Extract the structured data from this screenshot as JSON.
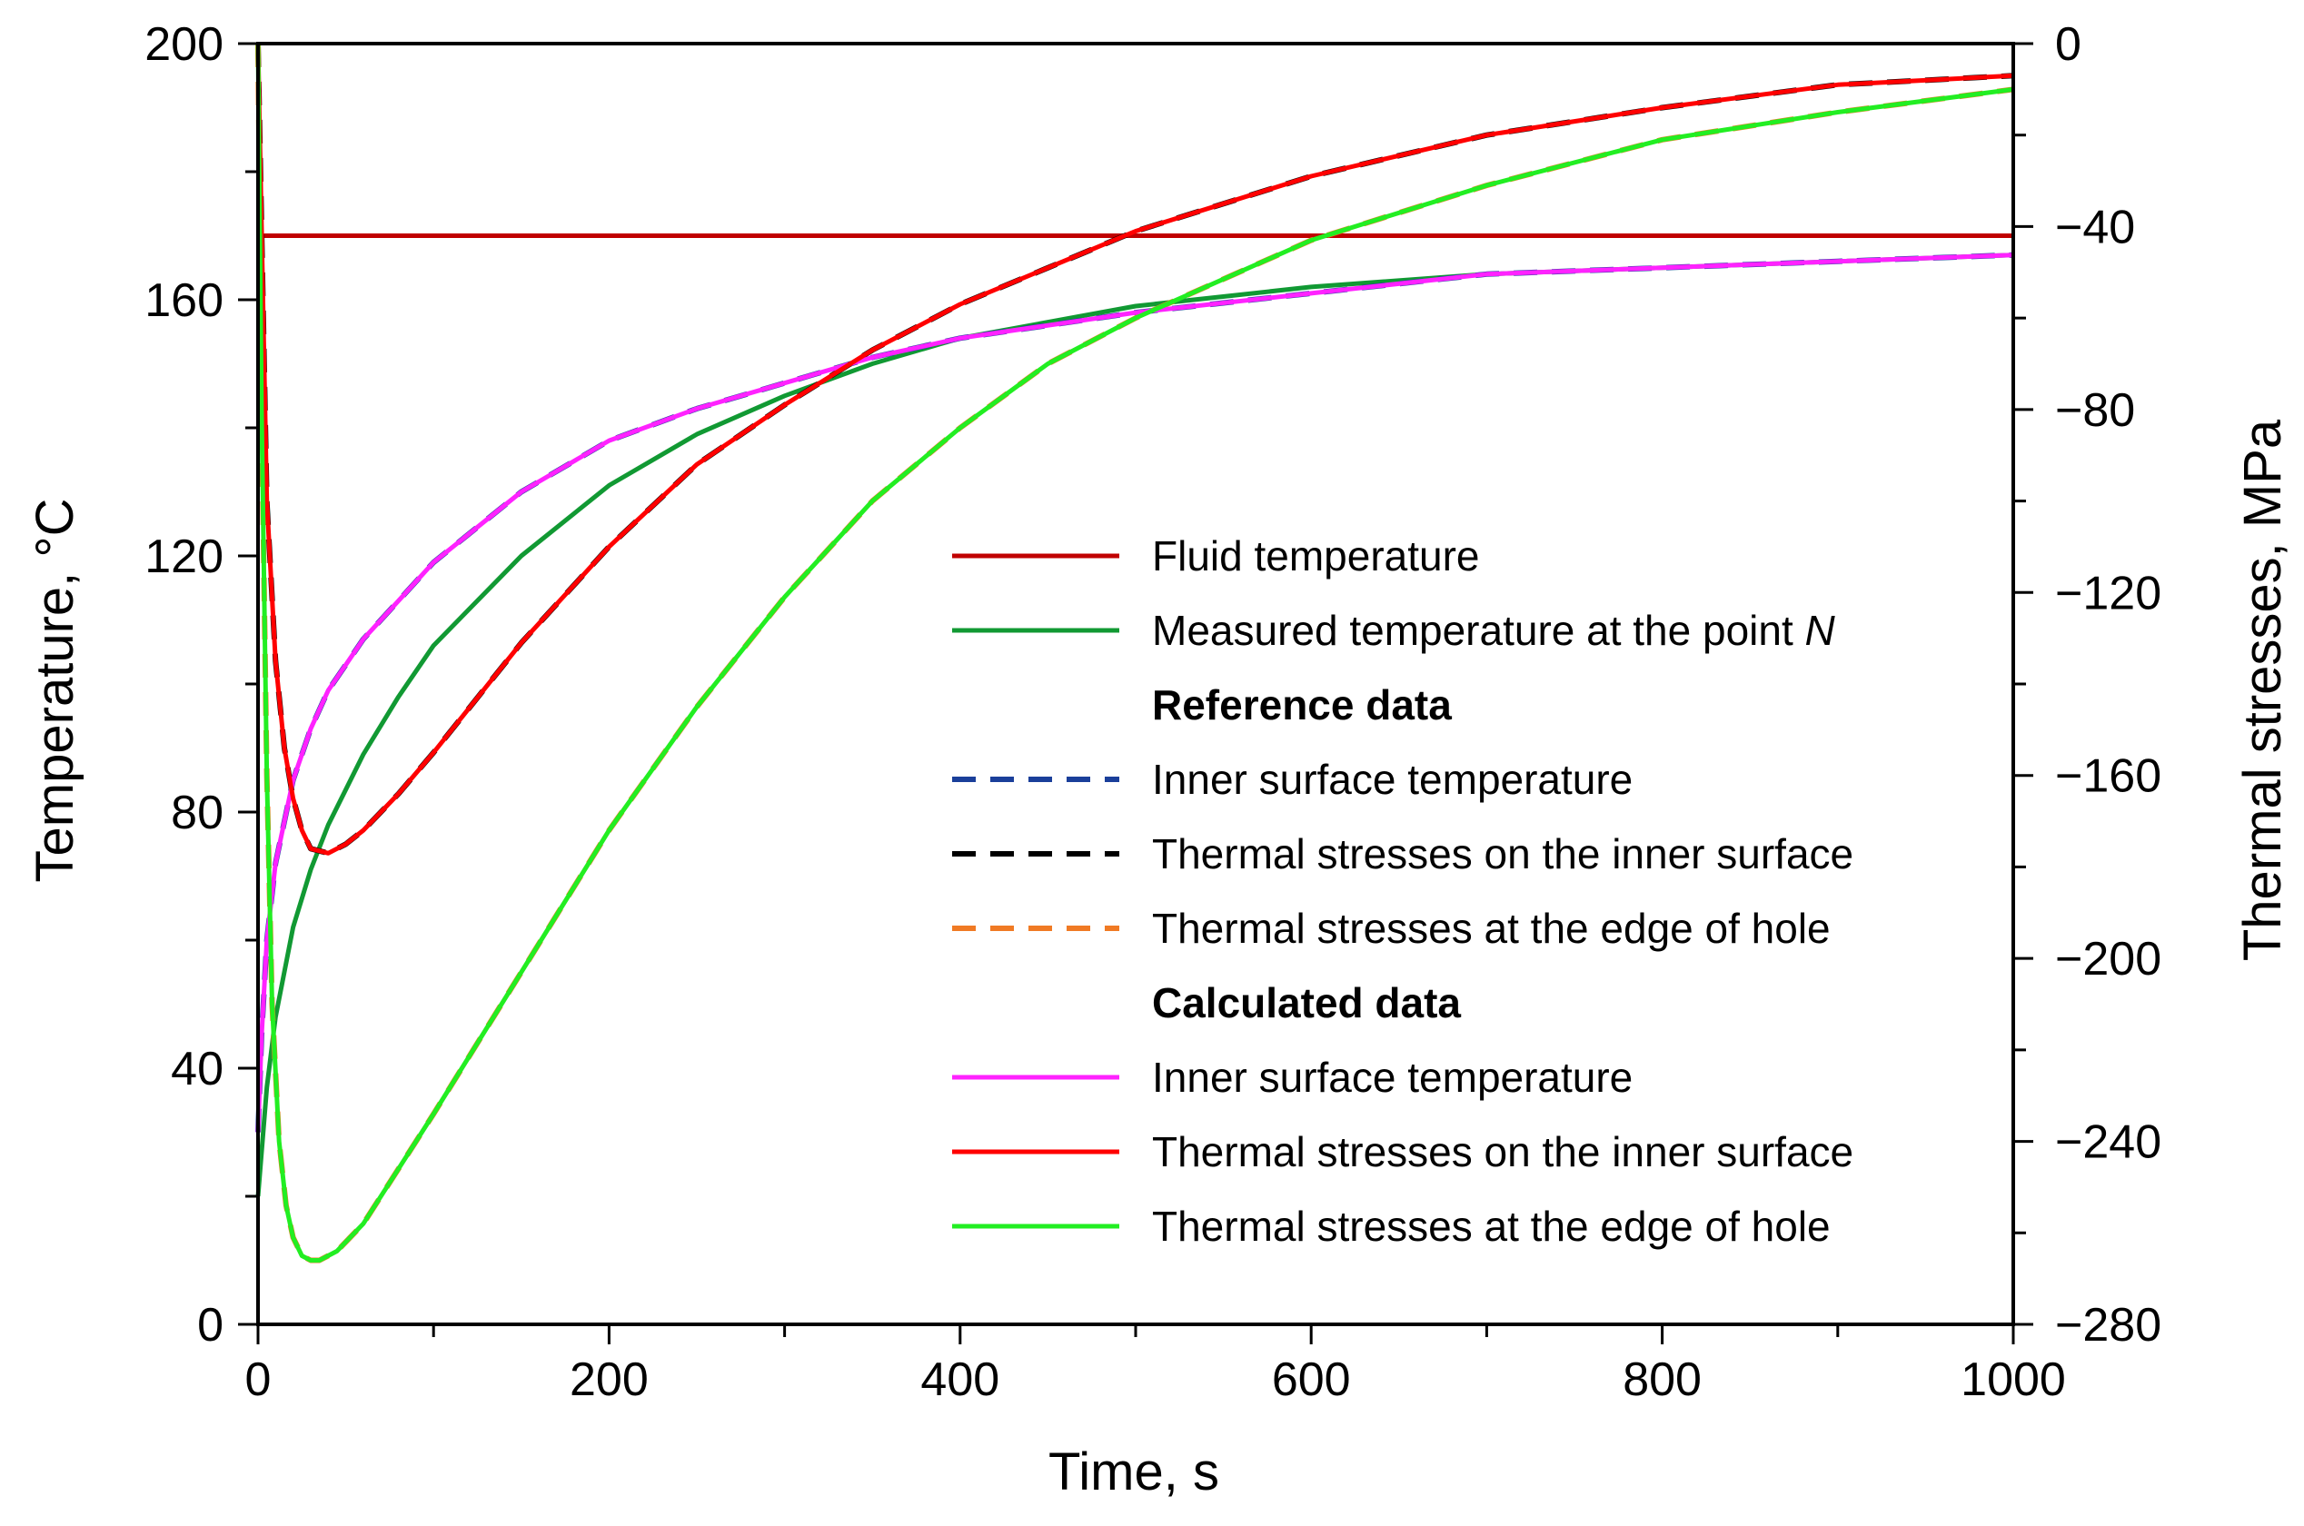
{
  "chart_data": {
    "type": "line",
    "xlabel": "Time, s",
    "ylabel": "Temperature, °C",
    "y2label": "Thermal stresses, MPa",
    "xlim": [
      0,
      1000
    ],
    "ylim": [
      0,
      200
    ],
    "y2lim": [
      -280,
      0
    ],
    "xticks": [
      0,
      200,
      400,
      600,
      800,
      1000
    ],
    "xtick_labels": [
      "0",
      "200",
      "400",
      "600",
      "800",
      "1000"
    ],
    "yticks": [
      0,
      40,
      80,
      120,
      160,
      200
    ],
    "ytick_labels": [
      "0",
      "40",
      "80",
      "120",
      "160",
      "200"
    ],
    "y2ticks": [
      0,
      -40,
      -80,
      -120,
      -160,
      -200,
      -240,
      -280
    ],
    "y2tick_labels": [
      "0",
      "−40",
      "−80",
      "−120",
      "−160",
      "−200",
      "−240",
      "−280"
    ],
    "legend": {
      "placement": "center-right",
      "reference_heading": "Reference data",
      "calculated_heading": "Calculated data"
    },
    "series": [
      {
        "key": "fluid",
        "name": "Fluid temperature",
        "axis": "left",
        "group": "top",
        "color": "#c00000",
        "dash": "solid",
        "x": [
          0,
          1000
        ],
        "y": [
          170,
          170
        ]
      },
      {
        "key": "measured",
        "name": "Measured temperature at the point",
        "name_italic": "N",
        "axis": "left",
        "group": "top",
        "color": "#119933",
        "dash": "solid",
        "x": [
          0,
          5,
          10,
          20,
          30,
          40,
          60,
          80,
          100,
          150,
          200,
          250,
          300,
          350,
          400,
          500,
          600,
          700,
          800,
          900,
          1000
        ],
        "y": [
          20,
          37,
          48,
          62,
          71,
          78,
          89,
          98,
          106,
          120,
          131,
          139,
          145,
          150,
          154,
          159,
          162,
          164,
          165,
          166,
          167
        ]
      },
      {
        "key": "ref_inner_temp",
        "name": "Inner surface temperature",
        "axis": "left",
        "group": "reference",
        "color": "#1a3f9a",
        "dash": "dashed",
        "x": [
          0,
          2,
          5,
          10,
          20,
          30,
          40,
          50,
          60,
          80,
          100,
          150,
          200,
          250,
          300,
          350,
          400,
          500,
          600,
          700,
          800,
          900,
          1000
        ],
        "y": [
          30,
          45,
          60,
          72,
          85,
          93,
          99,
          103,
          107,
          113,
          119,
          130,
          138,
          143,
          147,
          151,
          154,
          158,
          161,
          164,
          165,
          166,
          167
        ]
      },
      {
        "key": "ref_stress_inner",
        "name": "Thermal stresses on the inner surface",
        "axis": "right",
        "group": "reference",
        "color": "#000000",
        "dash": "dashed",
        "x": [
          0,
          2,
          5,
          10,
          15,
          20,
          25,
          30,
          40,
          50,
          60,
          80,
          100,
          150,
          200,
          250,
          300,
          350,
          400,
          450,
          500,
          600,
          700,
          800,
          900,
          1000
        ],
        "y": [
          0,
          -40,
          -100,
          -135,
          -154,
          -165,
          -172,
          -176,
          -177,
          -175,
          -172,
          -164,
          -155,
          -131,
          -110,
          -92,
          -79,
          -67,
          -57,
          -49,
          -41,
          -29,
          -20,
          -14,
          -9,
          -7
        ]
      },
      {
        "key": "ref_stress_hole",
        "name": "Thermal stresses at the edge of hole",
        "axis": "right",
        "group": "reference",
        "color": "#f07a24",
        "dash": "dashed",
        "x": [
          0,
          2,
          5,
          8,
          12,
          16,
          20,
          25,
          30,
          35,
          45,
          60,
          80,
          100,
          150,
          200,
          250,
          300,
          350,
          400,
          450,
          500,
          600,
          700,
          800,
          900,
          1000
        ],
        "y": [
          0,
          -80,
          -160,
          -210,
          -240,
          -254,
          -261,
          -265,
          -266,
          -266,
          -264,
          -258,
          -246,
          -234,
          -203,
          -172,
          -145,
          -121,
          -100,
          -84,
          -70,
          -60,
          -43,
          -31,
          -21,
          -15,
          -10
        ]
      },
      {
        "key": "calc_inner_temp",
        "name": "Inner surface temperature",
        "axis": "left",
        "group": "calculated",
        "color": "#ff22ff",
        "dash": "solid",
        "x": [
          0,
          2,
          5,
          10,
          20,
          30,
          40,
          50,
          60,
          80,
          100,
          150,
          200,
          250,
          300,
          350,
          400,
          500,
          600,
          700,
          800,
          900,
          1000
        ],
        "y": [
          30,
          45,
          60,
          72,
          85,
          93,
          99,
          103,
          107,
          113,
          119,
          130,
          138,
          143,
          147,
          151,
          154,
          158,
          161,
          164,
          165,
          166,
          167
        ]
      },
      {
        "key": "calc_stress_inner",
        "name": "Thermal stresses on the inner surface",
        "axis": "right",
        "group": "calculated",
        "color": "#ff0000",
        "dash": "solid",
        "x": [
          0,
          2,
          5,
          10,
          15,
          20,
          25,
          30,
          40,
          50,
          60,
          80,
          100,
          150,
          200,
          250,
          300,
          350,
          400,
          450,
          500,
          600,
          700,
          800,
          900,
          1000
        ],
        "y": [
          0,
          -40,
          -100,
          -135,
          -154,
          -165,
          -172,
          -176,
          -177,
          -175,
          -172,
          -164,
          -155,
          -131,
          -110,
          -92,
          -79,
          -67,
          -57,
          -49,
          -41,
          -29,
          -20,
          -14,
          -9,
          -7
        ]
      },
      {
        "key": "calc_stress_hole",
        "name": "Thermal stresses at the edge of hole",
        "axis": "right",
        "group": "calculated",
        "color": "#22ee22",
        "dash": "solid",
        "x": [
          0,
          2,
          5,
          8,
          12,
          16,
          20,
          25,
          30,
          35,
          45,
          60,
          80,
          100,
          150,
          200,
          250,
          300,
          350,
          400,
          450,
          500,
          600,
          700,
          800,
          900,
          1000
        ],
        "y": [
          0,
          -80,
          -160,
          -210,
          -240,
          -254,
          -261,
          -265,
          -266,
          -266,
          -264,
          -258,
          -246,
          -234,
          -203,
          -172,
          -145,
          -121,
          -100,
          -84,
          -70,
          -60,
          -43,
          -31,
          -21,
          -15,
          -10
        ]
      }
    ]
  }
}
